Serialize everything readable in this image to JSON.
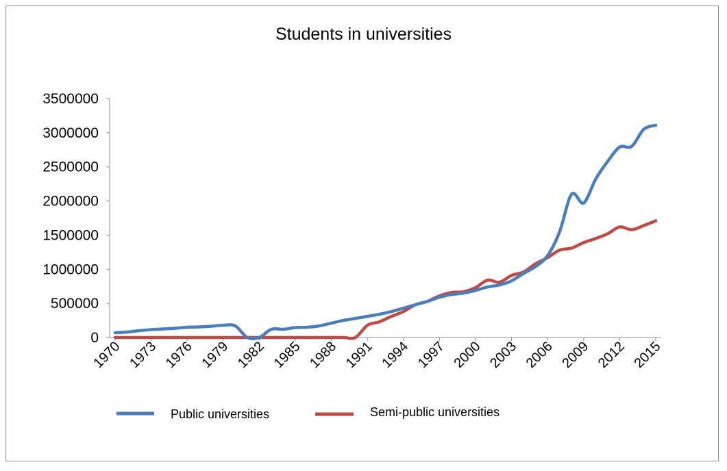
{
  "chart_data": {
    "type": "line",
    "title": "Students in universities",
    "xlabel": "",
    "ylabel": "",
    "x": [
      1970,
      1971,
      1972,
      1973,
      1974,
      1975,
      1976,
      1977,
      1978,
      1979,
      1980,
      1981,
      1982,
      1983,
      1984,
      1985,
      1986,
      1987,
      1988,
      1989,
      1990,
      1991,
      1992,
      1993,
      1994,
      1995,
      1996,
      1997,
      1998,
      1999,
      2000,
      2001,
      2002,
      2003,
      2004,
      2005,
      2006,
      2007,
      2008,
      2009,
      2010,
      2011,
      2012,
      2013,
      2014,
      2015
    ],
    "x_tick_labels": [
      "1970",
      "1973",
      "1976",
      "1979",
      "1982",
      "1985",
      "1988",
      "1991",
      "1994",
      "1997",
      "2000",
      "2003",
      "2006",
      "2009",
      "2012",
      "2015"
    ],
    "ylim": [
      0,
      3500000
    ],
    "y_ticks": [
      0,
      500000,
      1000000,
      1500000,
      2000000,
      2500000,
      3000000,
      3500000
    ],
    "y_tick_labels": [
      "0",
      "500000",
      "1000000",
      "1500000",
      "2000000",
      "2500000",
      "3000000",
      "3500000"
    ],
    "legend_position": "bottom",
    "grid": false,
    "series": [
      {
        "name": "Public universities",
        "color": "#4a7ebb",
        "values": [
          70000,
          80000,
          100000,
          115000,
          125000,
          135000,
          150000,
          155000,
          165000,
          180000,
          170000,
          0,
          0,
          120000,
          120000,
          145000,
          150000,
          170000,
          210000,
          250000,
          280000,
          310000,
          340000,
          380000,
          430000,
          480000,
          530000,
          590000,
          630000,
          650000,
          690000,
          740000,
          770000,
          830000,
          940000,
          1040000,
          1200000,
          1550000,
          2100000,
          1970000,
          2320000,
          2580000,
          2790000,
          2800000,
          3050000,
          3110000
        ]
      },
      {
        "name": "Semi-public universities",
        "color": "#be4b48",
        "values": [
          0,
          0,
          0,
          0,
          0,
          0,
          0,
          0,
          0,
          0,
          0,
          0,
          0,
          0,
          0,
          0,
          0,
          0,
          0,
          0,
          0,
          180000,
          230000,
          310000,
          380000,
          480000,
          530000,
          610000,
          660000,
          670000,
          730000,
          840000,
          810000,
          910000,
          960000,
          1080000,
          1170000,
          1280000,
          1310000,
          1390000,
          1450000,
          1520000,
          1620000,
          1580000,
          1640000,
          1710000
        ]
      }
    ]
  }
}
